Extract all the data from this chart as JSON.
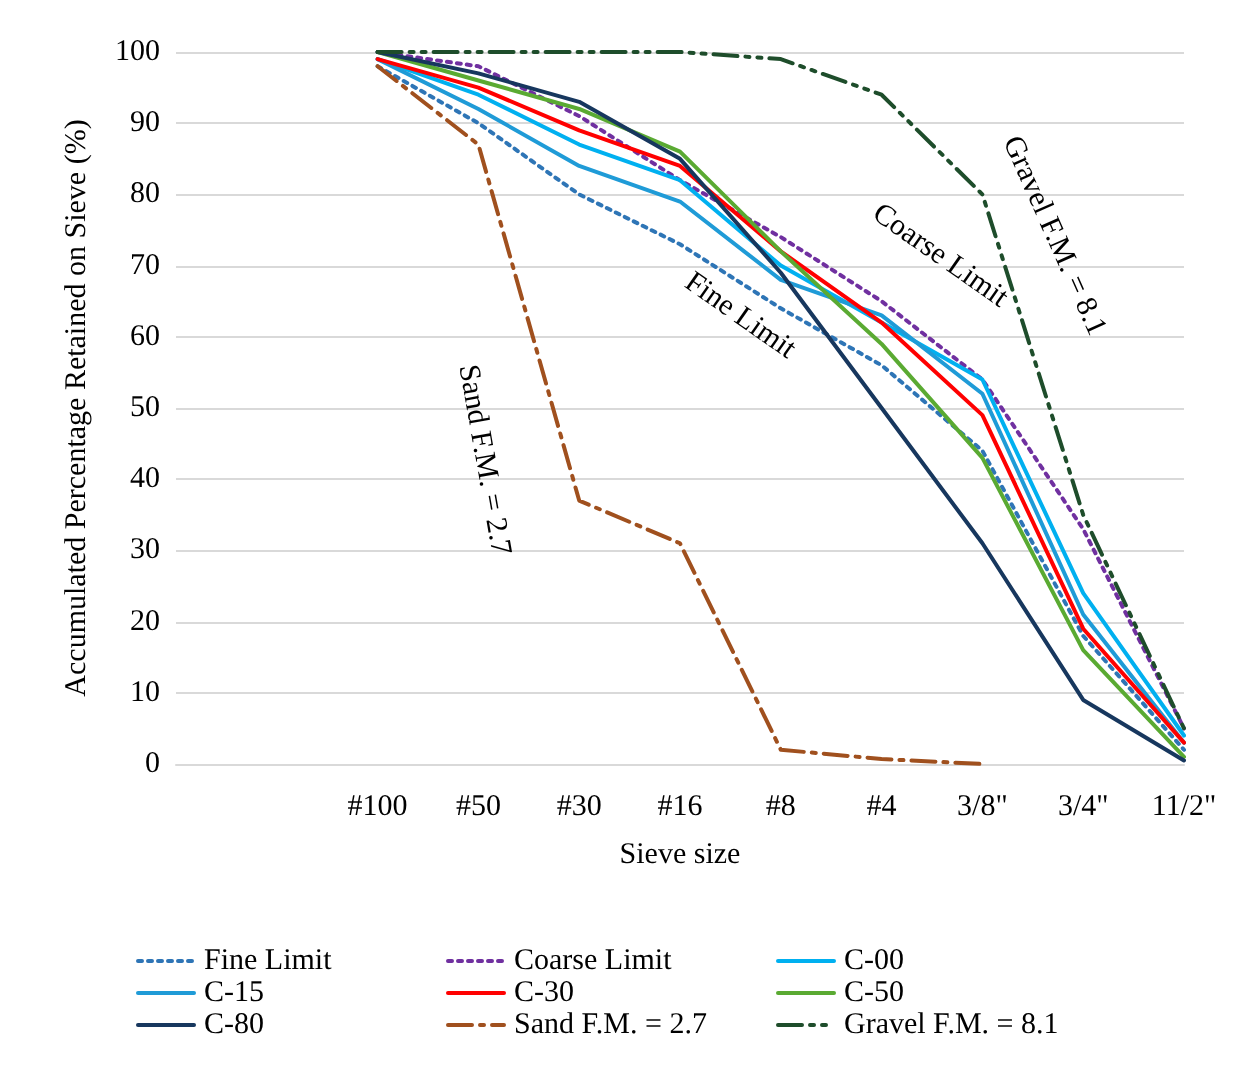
{
  "chart_data": {
    "type": "line",
    "xlabel": "Sieve size",
    "ylabel": "Accumulated Percentage Retained on Sieve (%)",
    "categories": [
      null,
      null,
      "#100",
      "#50",
      "#30",
      "#16",
      "#8",
      "#4",
      "3/8\"",
      "3/4\"",
      "11/2\""
    ],
    "ylim": [
      0,
      100
    ],
    "yticks": [
      0,
      10,
      20,
      30,
      40,
      50,
      60,
      70,
      80,
      90,
      100
    ],
    "grid": "y",
    "legend": "bottom",
    "marker": "none",
    "series": [
      {
        "name": "Fine Limit",
        "color": "#2e75b6",
        "line_style": "dotted",
        "values": [
          null,
          null,
          98,
          90,
          80,
          73,
          64,
          56,
          44,
          18,
          2
        ]
      },
      {
        "name": "Coarse Limit",
        "color": "#7030a0",
        "line_style": "dotted",
        "values": [
          null,
          null,
          100,
          98,
          91,
          82,
          74,
          65,
          54,
          33,
          5
        ]
      },
      {
        "name": "C-00",
        "color": "#00b0f0",
        "line_style": "solid",
        "values": [
          null,
          null,
          99,
          94,
          87,
          82,
          70,
          62,
          54,
          24,
          4
        ]
      },
      {
        "name": "C-15",
        "color": "#1f9bd7",
        "line_style": "solid",
        "values": [
          null,
          null,
          99,
          92,
          84,
          79,
          68,
          63,
          52,
          21,
          3
        ]
      },
      {
        "name": "C-30",
        "color": "#ff0000",
        "line_style": "solid",
        "values": [
          null,
          null,
          99,
          95,
          89,
          84,
          72,
          62,
          49,
          19,
          3
        ]
      },
      {
        "name": "C-50",
        "color": "#5aaa32",
        "line_style": "solid",
        "values": [
          null,
          null,
          100,
          96,
          92,
          86,
          72,
          59,
          43,
          16,
          1
        ]
      },
      {
        "name": "C-80",
        "color": "#17375e",
        "line_style": "solid",
        "values": [
          null,
          null,
          100,
          97,
          93,
          85,
          69,
          50,
          31,
          9,
          0.5
        ]
      },
      {
        "name": "Sand F.M. = 2.7",
        "color": "#a0501e",
        "line_style": "dashed",
        "values": [
          null,
          null,
          98,
          87,
          37,
          31,
          2,
          0.7,
          0,
          null,
          null
        ]
      },
      {
        "name": "Gravel F.M. = 8.1",
        "color": "#1e4d2b",
        "line_style": "dashed",
        "values": [
          null,
          null,
          100,
          100,
          100,
          100,
          99,
          94,
          80,
          35,
          5
        ]
      }
    ],
    "annotations": [
      "Fine Limit",
      "Coarse Limit",
      "Sand F.M. = 2.7",
      "Gravel F.M. = 8.1"
    ]
  }
}
